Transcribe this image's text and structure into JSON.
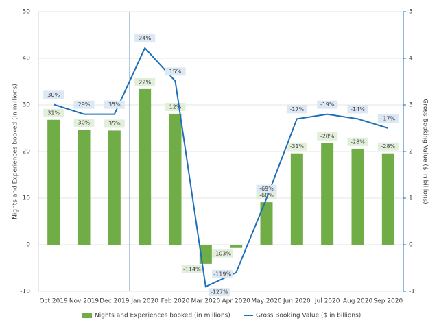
{
  "chart_data": {
    "type": "bar_line",
    "categories": [
      "Oct 2019",
      "Nov 2019",
      "Dec 2019",
      "Jan 2020",
      "Feb 2020",
      "Mar 2020",
      "Apr 2020",
      "May 2020",
      "Jun 2020",
      "Jul 2020",
      "Aug 2020",
      "Sep 2020"
    ],
    "y_label": "Nights and Experiences booked (in millions)",
    "y2_label": "Gross Booking Value ($ in billions)",
    "ylim": [
      -10,
      50
    ],
    "yticks": [
      -10,
      0,
      10,
      20,
      30,
      40,
      50
    ],
    "y2lim": [
      -1,
      5
    ],
    "y2ticks": [
      -1,
      0,
      1,
      2,
      3,
      4,
      5
    ],
    "grid": true,
    "series": [
      {
        "name": "Nights and Experiences booked (in millions)",
        "type": "bar",
        "color": "#70ad47",
        "values": [
          26.8,
          24.7,
          24.5,
          33.4,
          28.1,
          -4.1,
          -0.7,
          9.1,
          19.6,
          21.8,
          20.6,
          19.6
        ],
        "yoy_labels": [
          "31%",
          "30%",
          "35%",
          "22%",
          "12%",
          "-114%",
          "-103%",
          "-68%",
          "-31%",
          "-28%",
          "-28%",
          "-28%"
        ]
      },
      {
        "name": "Gross Booking Value ($ in billions)",
        "type": "line",
        "axis": "y2",
        "color": "#1f6fb8",
        "values": [
          3.01,
          2.8,
          2.8,
          4.22,
          3.51,
          -0.9,
          -0.6,
          0.99,
          2.7,
          2.8,
          2.7,
          2.5
        ],
        "yoy_labels": [
          "30%",
          "29%",
          "35%",
          "24%",
          "15%",
          "-127%",
          "-119%",
          "-69%",
          "-17%",
          "-19%",
          "-14%",
          "-17%"
        ]
      }
    ],
    "legend": "bottom"
  }
}
